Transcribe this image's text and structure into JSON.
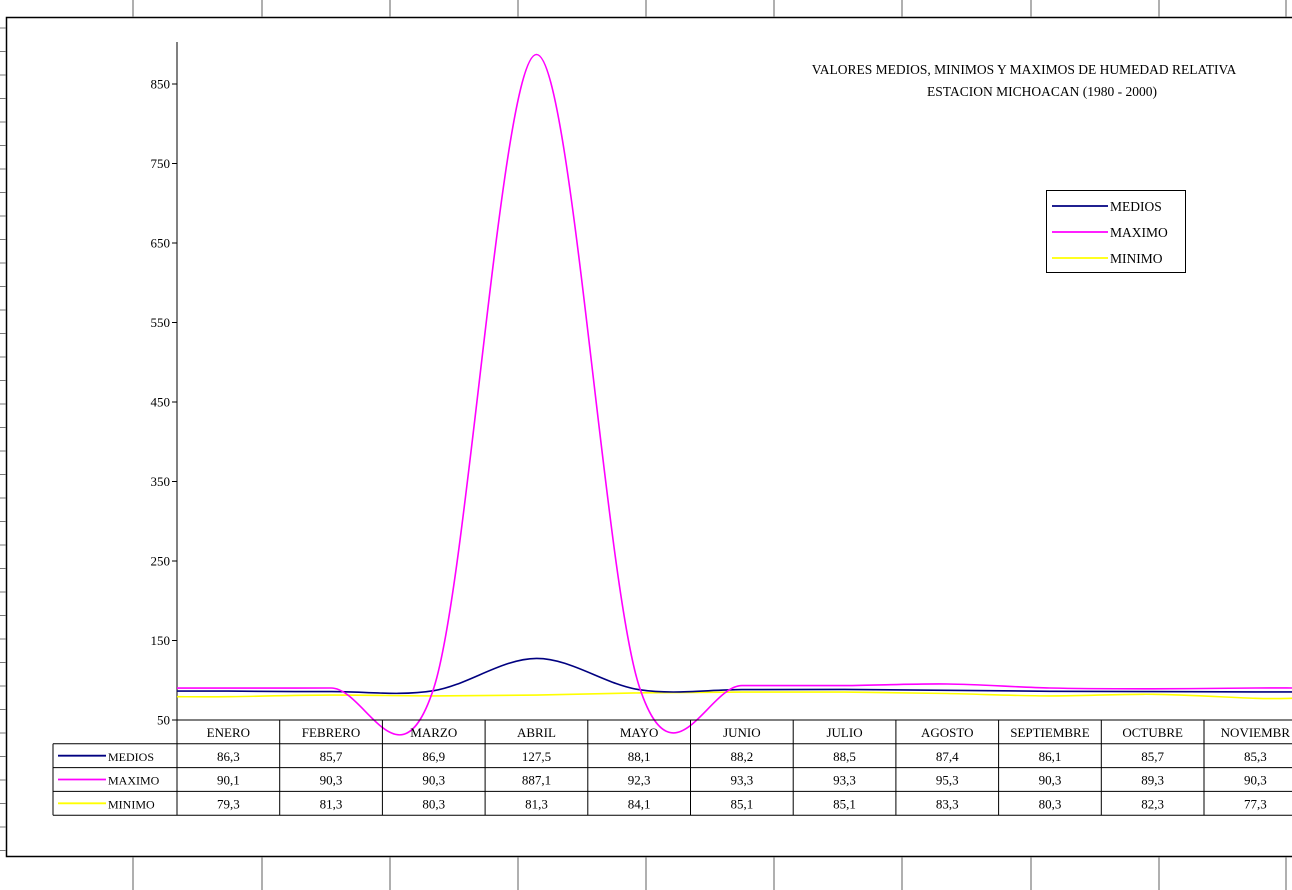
{
  "chart_data": {
    "type": "line",
    "title": "VALORES MEDIOS, MINIMOS Y MAXIMOS DE HUMEDAD RELATIVA",
    "subtitle": "ESTACION MICHOACAN (1980 - 2000)",
    "xlabel": "",
    "ylabel": "",
    "ylim": [
      50,
      900
    ],
    "yticks": [
      "50",
      "150",
      "250",
      "350",
      "450",
      "550",
      "650",
      "750",
      "850"
    ],
    "grid": false,
    "legend_position": "top-right",
    "categories": [
      "ENERO",
      "FEBRERO",
      "MARZO",
      "ABRIL",
      "MAYO",
      "JUNIO",
      "JULIO",
      "AGOSTO",
      "SEPTIEMBRE",
      "OCTUBRE",
      "NOVIEMBRE"
    ],
    "category_display": [
      "ENERO",
      "FEBRERO",
      "MARZO",
      "ABRIL",
      "MAYO",
      "JUNIO",
      "JULIO",
      "AGOSTO",
      "SEPTIEMBRE",
      "OCTUBRE",
      "NOVIEMBR"
    ],
    "series": [
      {
        "name": "MEDIOS",
        "color": "#000080",
        "values": [
          86.3,
          85.7,
          86.9,
          127.5,
          88.1,
          88.2,
          88.5,
          87.4,
          86.1,
          85.7,
          85.3
        ],
        "labels": [
          "86,3",
          "85,7",
          "86,9",
          "127,5",
          "88,1",
          "88,2",
          "88,5",
          "87,4",
          "86,1",
          "85,7",
          "85,3"
        ]
      },
      {
        "name": "MAXIMO",
        "color": "#ff00ff",
        "values": [
          90.1,
          90.3,
          90.3,
          887.1,
          92.3,
          93.3,
          93.3,
          95.3,
          90.3,
          89.3,
          90.3
        ],
        "labels": [
          "90,1",
          "90,3",
          "90,3",
          "887,1",
          "92,3",
          "93,3",
          "93,3",
          "95,3",
          "90,3",
          "89,3",
          "90,3"
        ]
      },
      {
        "name": "MINIMO",
        "color": "#ffff00",
        "values": [
          79.3,
          81.3,
          80.3,
          81.3,
          84.1,
          85.1,
          85.1,
          83.3,
          80.3,
          82.3,
          77.3
        ],
        "labels": [
          "79,3",
          "81,3",
          "80,3",
          "81,3",
          "84,1",
          "85,1",
          "85,1",
          "83,3",
          "80,3",
          "82,3",
          "77,3"
        ]
      }
    ]
  }
}
